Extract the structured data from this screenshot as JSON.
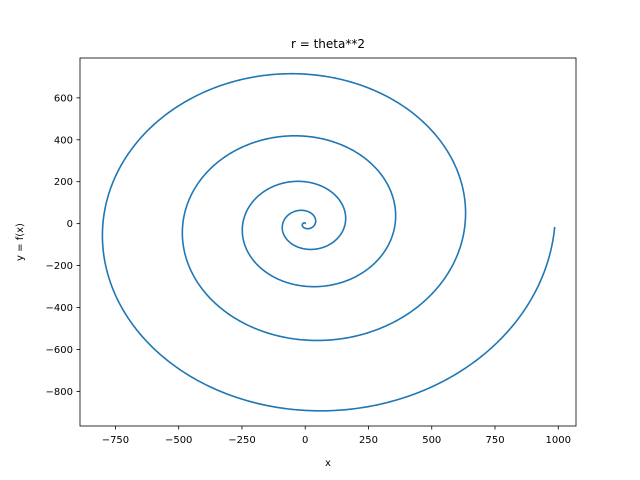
{
  "chart_data": {
    "type": "line",
    "title": "r = theta**2",
    "xlabel": "x",
    "ylabel": "y = f(x)",
    "xlim": [
      -890,
      1070
    ],
    "ylim": [
      -965,
      790
    ],
    "xticks": [
      -750,
      -500,
      -250,
      0,
      250,
      500,
      750,
      1000
    ],
    "yticks": [
      -800,
      -600,
      -400,
      -200,
      0,
      200,
      400,
      600
    ],
    "grid": false,
    "legend": "none",
    "series": [
      {
        "color": "#1f77b4",
        "equation": "r = theta**2",
        "theta_range": [
          0,
          31.4
        ],
        "samples": 2000
      }
    ]
  }
}
